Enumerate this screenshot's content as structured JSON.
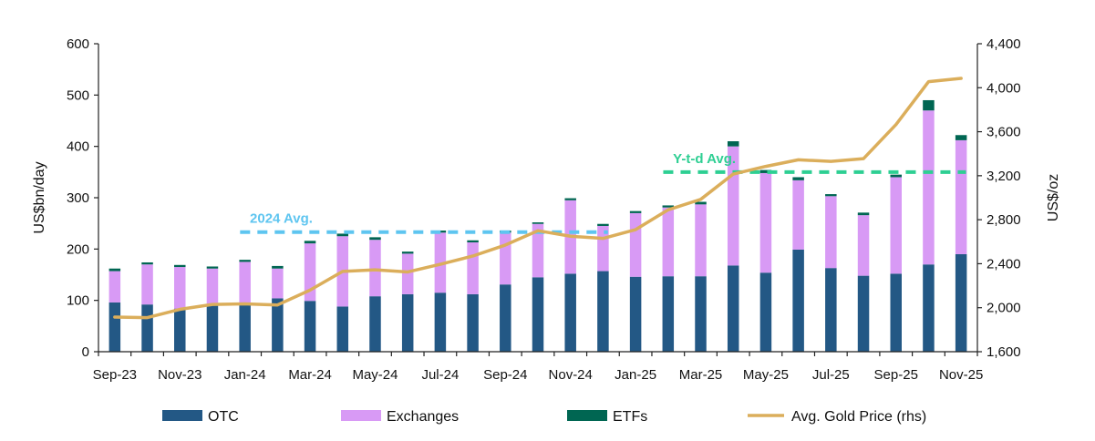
{
  "chart_data": {
    "type": "bar",
    "stacked": true,
    "title": "",
    "ylabel": "US$bn/day",
    "y2label": "US$/oz",
    "ylim": [
      0,
      600
    ],
    "y2lim": [
      1600,
      4400
    ],
    "yticks": [
      "0",
      "100",
      "200",
      "300",
      "400",
      "500",
      "600"
    ],
    "y2ticks": [
      "1,600",
      "2,000",
      "2,400",
      "2,800",
      "3,200",
      "3,600",
      "4,000",
      "4,400"
    ],
    "categories": [
      "Sep-23",
      "Oct-23",
      "Nov-23",
      "Dec-23",
      "Jan-24",
      "Feb-24",
      "Mar-24",
      "Apr-24",
      "May-24",
      "Jun-24",
      "Jul-24",
      "Aug-24",
      "Sep-24",
      "Oct-24",
      "Nov-24",
      "Dec-24",
      "Jan-25",
      "Feb-25",
      "Mar-25",
      "Apr-25",
      "May-25",
      "Jun-25",
      "Jul-25",
      "Aug-25",
      "Sep-25",
      "Oct-25",
      "Nov-25"
    ],
    "xtick_labels": [
      "Sep-23",
      "",
      "Nov-23",
      "",
      "Jan-24",
      "",
      "Mar-24",
      "",
      "May-24",
      "",
      "Jul-24",
      "",
      "Sep-24",
      "",
      "Nov-24",
      "",
      "Jan-25",
      "",
      "Mar-25",
      "",
      "May-25",
      "",
      "Jul-25",
      "",
      "Sep-25",
      "",
      "Nov-25"
    ],
    "series": [
      {
        "name": "OTC",
        "color": "#235885",
        "values": [
          96,
          92,
          84,
          93,
          91,
          104,
          99,
          88,
          108,
          112,
          115,
          112,
          131,
          145,
          152,
          157,
          146,
          147,
          147,
          168,
          154,
          199,
          163,
          148,
          152,
          170,
          190
        ]
      },
      {
        "name": "Exchanges",
        "color": "#d89af5",
        "values": [
          61,
          78,
          81,
          69,
          84,
          58,
          112,
          137,
          110,
          79,
          117,
          101,
          101,
          104,
          143,
          88,
          124,
          134,
          140,
          232,
          194,
          135,
          140,
          118,
          188,
          300,
          222
        ]
      },
      {
        "name": "ETFs",
        "color": "#006652",
        "values": [
          5,
          4,
          4,
          4,
          4,
          5,
          5,
          5,
          5,
          4,
          4,
          4,
          4,
          3,
          4,
          4,
          4,
          4,
          5,
          10,
          6,
          6,
          4,
          5,
          5,
          20,
          10
        ]
      }
    ],
    "line_series": {
      "name": "Avg. Gold Price (rhs)",
      "color": "#dbae5b",
      "axis": "right",
      "values": [
        1915,
        1910,
        1985,
        2030,
        2035,
        2025,
        2160,
        2330,
        2345,
        2325,
        2395,
        2470,
        2570,
        2700,
        2650,
        2630,
        2710,
        2890,
        2985,
        3215,
        3285,
        3345,
        3330,
        3355,
        3665,
        4055,
        4085
      ]
    },
    "annotations": [
      {
        "label": "2024 Avg.",
        "color": "#5ec5f0",
        "value": 233,
        "from": "Jan-24",
        "to": "Dec-24"
      },
      {
        "label": "Y-t-d Avg.",
        "color": "#2ecf93",
        "value": 350,
        "from": "Feb-25",
        "to": "Nov-25"
      }
    ],
    "legend": {
      "placement": "bottom",
      "entries": [
        "OTC",
        "Exchanges",
        "ETFs",
        "Avg. Gold Price (rhs)"
      ]
    },
    "grid": false
  }
}
